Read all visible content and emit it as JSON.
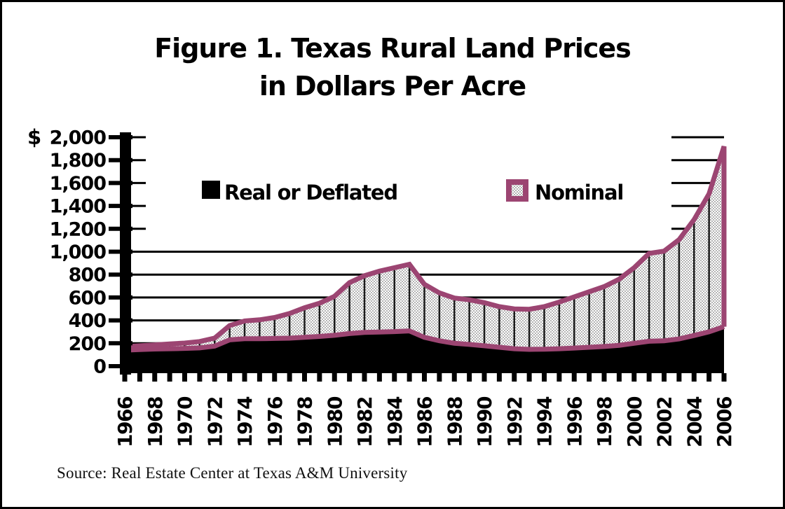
{
  "figure": {
    "title_line1": "Figure 1. Texas Rural Land Prices",
    "title_line2": "in Dollars Per Acre",
    "source": "Source: Real Estate Center at Texas A&M University"
  },
  "legend": {
    "real_label": "Real or Deflated",
    "nominal_label": "Nominal"
  },
  "colors": {
    "nominal_line": "#9c4572",
    "checker_gray": "#b4b4b4",
    "real_fill": "#000000",
    "axis": "#000000"
  },
  "chart_data": {
    "type": "area",
    "title": "Figure 1. Texas Rural Land Prices in Dollars Per Acre",
    "xlabel": "",
    "ylabel": "Dollars per acre",
    "y_axis_prefix": "$",
    "ylim": [
      0,
      2000
    ],
    "grid": "horizontal",
    "legend_position": "inside-top",
    "drop_lines": true,
    "x": [
      1966,
      1967,
      1968,
      1969,
      1970,
      1971,
      1972,
      1973,
      1974,
      1975,
      1976,
      1977,
      1978,
      1979,
      1980,
      1981,
      1982,
      1983,
      1984,
      1985,
      1986,
      1987,
      1988,
      1989,
      1990,
      1991,
      1992,
      1993,
      1994,
      1995,
      1996,
      1997,
      1998,
      1999,
      2000,
      2001,
      2002,
      2003,
      2004,
      2005,
      2006
    ],
    "x_tick_labels": [
      "1966",
      "1968",
      "1970",
      "1972",
      "1974",
      "1976",
      "1978",
      "1980",
      "1982",
      "1984",
      "1986",
      "1988",
      "1990",
      "1992",
      "1994",
      "1996",
      "1998",
      "2000",
      "2002",
      "2004",
      "2006"
    ],
    "y_ticks": [
      0,
      200,
      400,
      600,
      800,
      1000,
      1200,
      1400,
      1600,
      1800,
      2000
    ],
    "y_tick_labels": [
      "0",
      "200",
      "400",
      "600",
      "800",
      "1,000",
      "1,200",
      "1,400",
      "1,600",
      "1,800",
      "2,000"
    ],
    "series": [
      {
        "name": "Real or Deflated",
        "values": [
          140,
          145,
          150,
          152,
          155,
          160,
          175,
          230,
          240,
          240,
          242,
          245,
          252,
          260,
          270,
          285,
          295,
          298,
          302,
          308,
          252,
          222,
          200,
          190,
          178,
          165,
          152,
          147,
          148,
          152,
          158,
          165,
          172,
          182,
          200,
          218,
          222,
          238,
          268,
          300,
          345
        ]
      },
      {
        "name": "Nominal",
        "values": [
          170,
          178,
          186,
          194,
          202,
          215,
          245,
          355,
          395,
          405,
          425,
          460,
          510,
          550,
          610,
          730,
          790,
          830,
          860,
          890,
          715,
          640,
          595,
          580,
          555,
          520,
          500,
          497,
          520,
          560,
          605,
          650,
          695,
          760,
          860,
          985,
          1005,
          1105,
          1280,
          1505,
          1920
        ]
      }
    ]
  }
}
